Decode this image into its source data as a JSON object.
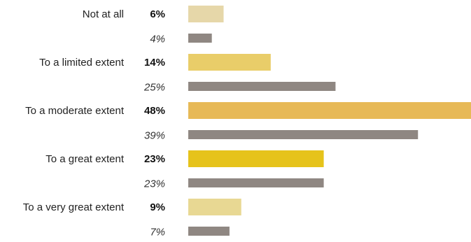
{
  "chart_data": {
    "type": "bar",
    "orientation": "horizontal",
    "categories": [
      "Not at all",
      "To a limited extent",
      "To a moderate extent",
      "To a great extent",
      "To a very great extent"
    ],
    "series": [
      {
        "values": [
          6,
          14,
          48,
          23,
          9
        ],
        "value_labels": [
          "6%",
          "14%",
          "48%",
          "23%",
          "9%"
        ],
        "colors": [
          "#e6d7a9",
          "#e9cd69",
          "#e7b957",
          "#e6c31b",
          "#e8d893"
        ]
      },
      {
        "values": [
          4,
          25,
          39,
          23,
          7
        ],
        "value_labels": [
          "4%",
          "25%",
          "39%",
          "23%",
          "7%"
        ],
        "color": "#8f8782"
      }
    ],
    "title": "",
    "xlabel": "",
    "ylabel": "",
    "xlim": [
      0,
      48
    ],
    "grid": false,
    "legend": "none"
  }
}
